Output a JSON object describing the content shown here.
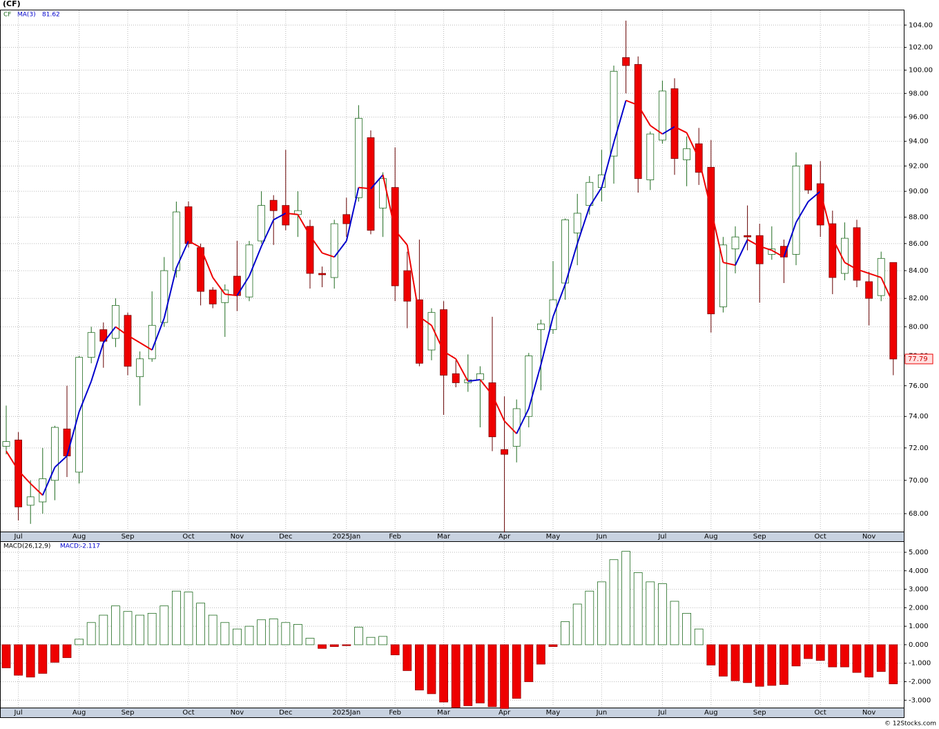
{
  "chart_data": [
    {
      "type": "candlestick",
      "title": "(CF)",
      "symbol": "CF",
      "log_scale": true,
      "grid": true,
      "up_color": "#1f6b1f",
      "down_color": "#ee0000",
      "rise_color": "#0000cc",
      "fall_color": "#ee0000",
      "categories": [
        null,
        "Jul",
        null,
        null,
        null,
        null,
        "Aug",
        null,
        null,
        null,
        "Sep",
        null,
        null,
        null,
        null,
        "Oct",
        null,
        null,
        null,
        "Nov",
        null,
        null,
        null,
        "Dec",
        null,
        null,
        null,
        null,
        "2025Jan",
        null,
        null,
        null,
        "Feb",
        null,
        null,
        null,
        "Mar",
        null,
        null,
        null,
        null,
        "Apr",
        null,
        null,
        null,
        "May",
        null,
        null,
        null,
        "Jun",
        null,
        null,
        null,
        null,
        "Jul",
        null,
        null,
        null,
        "Aug",
        null,
        null,
        null,
        "Sep",
        null,
        null,
        null,
        null,
        "Oct",
        null,
        null,
        null,
        "Nov",
        null,
        null
      ],
      "open": [
        72.1,
        72.5,
        68.5,
        68.7,
        70.0,
        73.2,
        70.5,
        77.9,
        79.8,
        79.2,
        80.8,
        76.6,
        77.8,
        80.3,
        84.0,
        88.8,
        85.7,
        82.6,
        81.7,
        83.6,
        82.1,
        86.2,
        89.3,
        88.9,
        88.2,
        87.3,
        83.8,
        83.5,
        88.2,
        89.5,
        94.3,
        88.7,
        90.3,
        84.0,
        81.9,
        78.4,
        81.2,
        76.8,
        76.2,
        76.4,
        76.2,
        71.9,
        72.1,
        74.0,
        79.8,
        79.8,
        83.1,
        86.8,
        88.9,
        90.3,
        92.8,
        101.1,
        100.5,
        90.9,
        94.1,
        98.4,
        92.5,
        93.8,
        91.9,
        81.4,
        85.6,
        86.6,
        86.6,
        85.2,
        85.8,
        85.2,
        92.1,
        90.6,
        87.5,
        83.8,
        87.2,
        83.2,
        82.2,
        84.6
      ],
      "high": [
        74.7,
        73.0,
        70.0,
        72.0,
        73.4,
        76.0,
        78.0,
        80.0,
        80.3,
        82.0,
        81.0,
        78.3,
        82.5,
        85.0,
        89.2,
        89.2,
        86.0,
        82.8,
        83.0,
        86.2,
        86.2,
        90.0,
        89.7,
        93.3,
        90.0,
        87.8,
        84.3,
        87.8,
        89.5,
        97.0,
        94.9,
        91.5,
        93.5,
        85.4,
        86.3,
        81.3,
        81.8,
        77.7,
        78.1,
        77.3,
        80.7,
        75.3,
        75.1,
        78.2,
        80.5,
        84.7,
        87.9,
        89.8,
        91.2,
        93.3,
        100.4,
        104.4,
        101.2,
        94.8,
        99.1,
        99.3,
        94.4,
        95.1,
        94.1,
        86.5,
        87.3,
        88.9,
        87.5,
        87.3,
        86.3,
        93.1,
        92.1,
        92.4,
        88.5,
        87.6,
        87.8,
        83.9,
        85.4,
        84.6
      ],
      "low": [
        71.6,
        67.6,
        67.4,
        68.0,
        68.8,
        70.2,
        69.8,
        77.5,
        77.2,
        78.6,
        76.7,
        74.7,
        77.6,
        80.0,
        83.5,
        85.7,
        81.5,
        81.3,
        79.3,
        81.1,
        81.8,
        86.0,
        85.9,
        87.0,
        86.5,
        82.7,
        82.8,
        82.7,
        86.5,
        89.2,
        86.7,
        86.5,
        81.8,
        79.9,
        77.3,
        77.7,
        74.1,
        75.9,
        75.6,
        73.3,
        71.8,
        66.9,
        71.1,
        73.3,
        75.7,
        79.5,
        81.9,
        84.4,
        88.2,
        89.2,
        90.6,
        98.0,
        89.9,
        90.1,
        93.8,
        91.3,
        90.4,
        90.5,
        79.6,
        81.0,
        83.8,
        85.5,
        81.7,
        84.8,
        83.1,
        84.4,
        89.8,
        86.5,
        82.3,
        83.3,
        82.8,
        80.1,
        81.8,
        76.7
      ],
      "close": [
        72.4,
        68.4,
        69.0,
        70.1,
        73.3,
        71.5,
        77.9,
        79.6,
        79.0,
        81.5,
        77.3,
        77.8,
        80.1,
        84.0,
        88.4,
        86.0,
        82.5,
        81.6,
        82.6,
        82.2,
        85.9,
        88.9,
        88.5,
        87.4,
        88.5,
        83.8,
        83.7,
        87.5,
        87.5,
        95.9,
        87.0,
        91.0,
        82.9,
        81.8,
        77.5,
        81.0,
        76.7,
        76.2,
        76.4,
        76.8,
        72.7,
        71.6,
        74.5,
        78.0,
        80.2,
        81.9,
        87.8,
        88.3,
        90.7,
        91.3,
        99.9,
        100.4,
        91.0,
        94.6,
        98.2,
        92.6,
        93.4,
        91.5,
        80.9,
        85.9,
        86.5,
        86.5,
        84.5,
        85.6,
        85.0,
        92.0,
        90.1,
        87.4,
        83.5,
        86.4,
        83.3,
        82.0,
        84.9,
        77.79
      ],
      "series": [
        {
          "name": "MA(3)",
          "values": [
            71.8,
            70.6,
            69.8,
            69.1,
            70.8,
            71.5,
            74.3,
            76.3,
            78.9,
            80.0,
            79.4,
            78.9,
            78.4,
            80.6,
            84.2,
            86.2,
            85.7,
            83.5,
            82.3,
            82.2,
            83.6,
            85.8,
            87.8,
            88.3,
            88.2,
            86.6,
            85.3,
            85.0,
            86.2,
            90.3,
            90.2,
            91.3,
            87.0,
            85.9,
            80.7,
            80.1,
            78.3,
            77.8,
            76.3,
            76.4,
            75.4,
            73.7,
            72.9,
            74.5,
            77.4,
            80.7,
            83.0,
            86.0,
            88.8,
            90.3,
            93.9,
            97.4,
            97.0,
            95.3,
            94.6,
            95.2,
            94.7,
            92.6,
            88.6,
            84.6,
            84.4,
            86.3,
            85.8,
            85.5,
            85.0,
            87.6,
            89.2,
            90.0,
            86.4,
            84.6,
            84.1,
            83.8,
            83.5,
            81.62
          ]
        }
      ],
      "ylim": [
        66.95,
        105.4
      ],
      "yticks": [
        {
          "value": 68,
          "label": "68.00"
        },
        {
          "value": 70,
          "label": "70.00"
        },
        {
          "value": 72,
          "label": "72.00"
        },
        {
          "value": 74,
          "label": "74.00"
        },
        {
          "value": 76,
          "label": "76.00"
        },
        {
          "value": 78,
          "label": "78.00"
        },
        {
          "value": 80,
          "label": "80.00"
        },
        {
          "value": 82,
          "label": "82.00"
        },
        {
          "value": 84,
          "label": "84.00"
        },
        {
          "value": 86,
          "label": "86.00"
        },
        {
          "value": 88,
          "label": "88.00"
        },
        {
          "value": 90,
          "label": "90.00"
        },
        {
          "value": 92,
          "label": "92.00"
        },
        {
          "value": 94,
          "label": "94.00"
        },
        {
          "value": 96,
          "label": "96.00"
        },
        {
          "value": 98,
          "label": "98.00"
        },
        {
          "value": 100,
          "label": "100.00"
        },
        {
          "value": 102,
          "label": "102.00"
        },
        {
          "value": 104,
          "label": "104.00"
        }
      ]
    },
    {
      "type": "bar",
      "title": "MACD(26,12,9)",
      "value_name": "MACD:",
      "grid": true,
      "up_color": "#1f6b1f",
      "down_color": "#ee0000",
      "categories": [
        null,
        "Jul",
        null,
        null,
        null,
        null,
        "Aug",
        null,
        null,
        null,
        "Sep",
        null,
        null,
        null,
        null,
        "Oct",
        null,
        null,
        null,
        "Nov",
        null,
        null,
        null,
        "Dec",
        null,
        null,
        null,
        null,
        "2025Jan",
        null,
        null,
        null,
        "Feb",
        null,
        null,
        null,
        "Mar",
        null,
        null,
        null,
        null,
        "Apr",
        null,
        null,
        null,
        "May",
        null,
        null,
        null,
        "Jun",
        null,
        null,
        null,
        null,
        "Jul",
        null,
        null,
        null,
        "Aug",
        null,
        null,
        null,
        "Sep",
        null,
        null,
        null,
        null,
        "Oct",
        null,
        null,
        null,
        "Nov",
        null,
        null
      ],
      "values": [
        -1.25,
        -1.65,
        -1.75,
        -1.55,
        -0.95,
        -0.7,
        0.3,
        1.2,
        1.6,
        2.1,
        1.8,
        1.6,
        1.7,
        2.1,
        2.9,
        2.85,
        2.25,
        1.6,
        1.2,
        0.85,
        1.0,
        1.35,
        1.4,
        1.2,
        1.1,
        0.35,
        -0.2,
        -0.1,
        -0.05,
        0.95,
        0.4,
        0.45,
        -0.55,
        -1.4,
        -2.45,
        -2.65,
        -3.1,
        -3.4,
        -3.3,
        -3.15,
        -3.35,
        -3.45,
        -2.9,
        -2.0,
        -1.05,
        -0.1,
        1.25,
        2.2,
        2.9,
        3.4,
        4.6,
        5.05,
        3.9,
        3.4,
        3.3,
        2.35,
        1.7,
        0.85,
        -1.1,
        -1.7,
        -1.95,
        -2.05,
        -2.25,
        -2.2,
        -2.15,
        -1.15,
        -0.75,
        -0.85,
        -1.2,
        -1.2,
        -1.5,
        -1.75,
        -1.45,
        -2.117
      ],
      "ylim": [
        -3.4,
        5.56
      ],
      "yticks": [
        {
          "value": -3,
          "label": "-3.000"
        },
        {
          "value": -2,
          "label": "-2.000"
        },
        {
          "value": -1,
          "label": "-1.000"
        },
        {
          "value": 0,
          "label": "0.000"
        },
        {
          "value": 1,
          "label": "1.000"
        },
        {
          "value": 2,
          "label": "2.000"
        },
        {
          "value": 3,
          "label": "3.000"
        },
        {
          "value": 4,
          "label": "4.000"
        },
        {
          "value": 5,
          "label": "5.000"
        }
      ]
    }
  ],
  "footer": "© 12Stocks.com"
}
